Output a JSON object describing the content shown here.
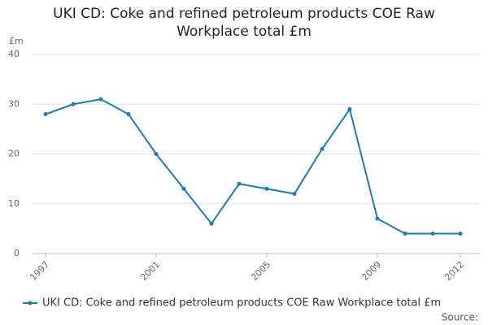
{
  "chart_data": {
    "type": "line",
    "title": "UKI CD: Coke and refined petroleum products COE Raw Workplace total £m",
    "y_label": "£m",
    "source": "Source:",
    "x": [
      1997,
      1998,
      1999,
      2000,
      2001,
      2002,
      2003,
      2004,
      2005,
      2006,
      2007,
      2008,
      2009,
      2010,
      2011,
      2012
    ],
    "series": [
      {
        "name": "UKI CD: Coke and refined petroleum products COE Raw Workplace total £m",
        "color": "#1f7ab5",
        "values": [
          28,
          30,
          31,
          28,
          20,
          13,
          6,
          14,
          13,
          12,
          21,
          29,
          7,
          4,
          4,
          4
        ]
      }
    ],
    "xlim": [
      1997,
      2012
    ],
    "xticks": [
      1997,
      2001,
      2005,
      2009,
      2012
    ],
    "ylim": [
      0,
      40
    ],
    "yticks": [
      0,
      10,
      20,
      30,
      40
    ],
    "grid": true,
    "legend": "bottom"
  }
}
